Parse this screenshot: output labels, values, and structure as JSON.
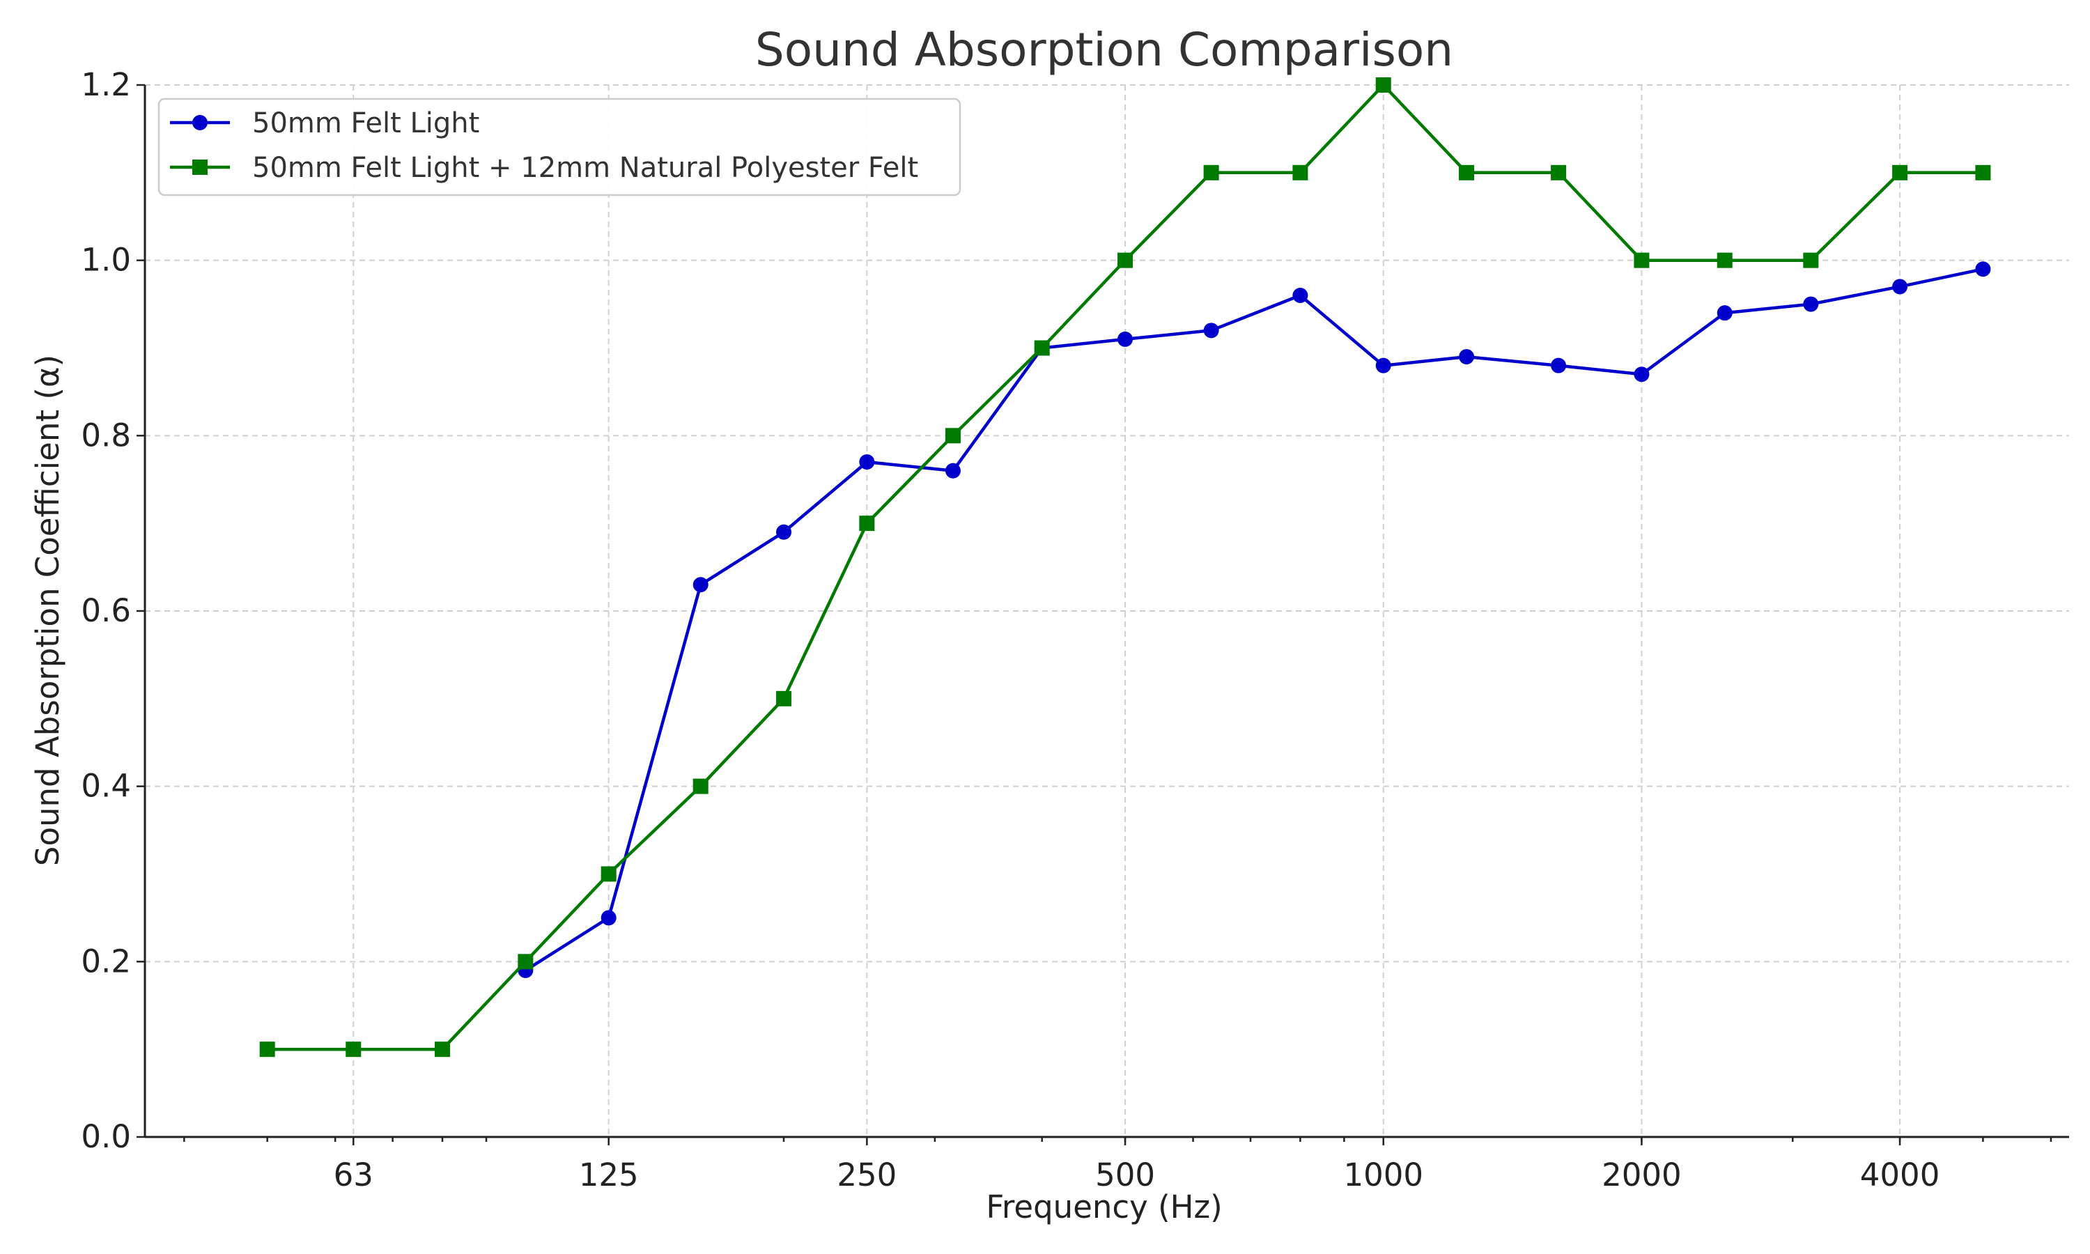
{
  "chart_data": {
    "type": "line",
    "title": "Sound Absorption Comparison",
    "xlabel": "Frequency (Hz)",
    "ylabel": "Sound Absorption Coefficient (α)",
    "x_scale": "log",
    "xlim": [
      36,
      6300
    ],
    "ylim": [
      0,
      1.2
    ],
    "x_ticks": [
      63,
      125,
      250,
      500,
      1000,
      2000,
      4000
    ],
    "x_tick_labels": [
      "63",
      "125",
      "250",
      "500",
      "1000",
      "2000",
      "4000"
    ],
    "y_ticks": [
      0,
      0.2,
      0.4,
      0.6,
      0.8,
      1.0,
      1.2
    ],
    "y_tick_labels": [
      "0.0",
      "0.2",
      "0.4",
      "0.6",
      "0.8",
      "1.0",
      "1.2"
    ],
    "grid": true,
    "legend_position": "top-left",
    "series": [
      {
        "name": "50mm Felt Light",
        "color": "#0000cc",
        "marker": "circle",
        "x": [
          100,
          125,
          160,
          200,
          250,
          315,
          400,
          500,
          630,
          800,
          1000,
          1250,
          1600,
          2000,
          2500,
          3150,
          4000,
          5000
        ],
        "values": [
          0.19,
          0.25,
          0.63,
          0.69,
          0.77,
          0.76,
          0.9,
          0.91,
          0.92,
          0.96,
          0.88,
          0.89,
          0.88,
          0.87,
          0.94,
          0.95,
          0.97,
          0.99
        ]
      },
      {
        "name": "50mm Felt Light + 12mm Natural Polyester Felt",
        "color": "#007a00",
        "marker": "square",
        "x": [
          50,
          63,
          80,
          100,
          125,
          160,
          200,
          250,
          315,
          400,
          500,
          630,
          800,
          1000,
          1250,
          1600,
          2000,
          2500,
          3150,
          4000,
          5000
        ],
        "values": [
          0.1,
          0.1,
          0.1,
          0.2,
          0.3,
          0.4,
          0.5,
          0.7,
          0.8,
          0.9,
          1.0,
          1.1,
          1.1,
          1.2,
          1.1,
          1.1,
          1.0,
          1.0,
          1.0,
          1.1,
          1.1
        ]
      }
    ]
  }
}
